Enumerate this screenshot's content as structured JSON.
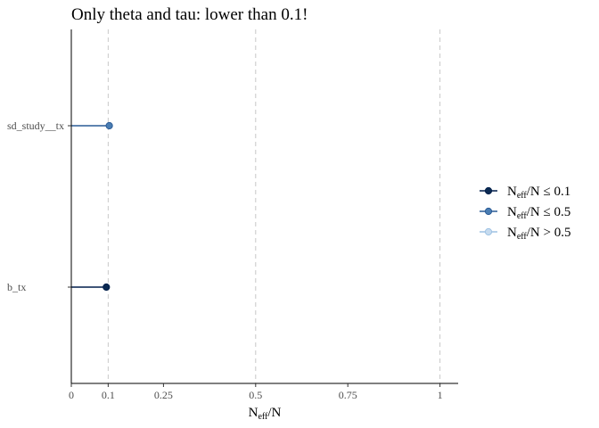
{
  "chart_data": {
    "type": "scatter",
    "title": "Only theta and tau: lower than 0.1!",
    "xlabel": {
      "main": "N",
      "sub": "eff",
      "rest": "/N"
    },
    "ylabel": "",
    "xlim": [
      0,
      1.05
    ],
    "x_ticks": [
      0,
      0.1,
      0.25,
      0.5,
      0.75,
      1
    ],
    "x_tick_labels": [
      "0",
      "0.1",
      "0.25",
      "0.5",
      "0.75",
      "1"
    ],
    "reference_lines": [
      0.1,
      0.5,
      1
    ],
    "categories": [
      "b_tx",
      "sd_study__tx"
    ],
    "points": [
      {
        "label": "b_tx",
        "value": 0.095,
        "group": "low"
      },
      {
        "label": "sd_study__tx",
        "value": 0.103,
        "group": "mid"
      }
    ],
    "legend_position": "right",
    "legend": [
      {
        "key": "low",
        "prefix": "N",
        "sub": "eff",
        "rest": "/N ≤ 0.1",
        "color": "#011f4b",
        "fill": "#0b2a52"
      },
      {
        "key": "mid",
        "prefix": "N",
        "sub": "eff",
        "rest": "/N ≤ 0.5",
        "color": "#2a5b96",
        "fill": "#4a7db2"
      },
      {
        "key": "high",
        "prefix": "N",
        "sub": "eff",
        "rest": "/N > 0.5",
        "color": "#9ec2e3",
        "fill": "#c6dbef"
      }
    ],
    "grid": false
  }
}
